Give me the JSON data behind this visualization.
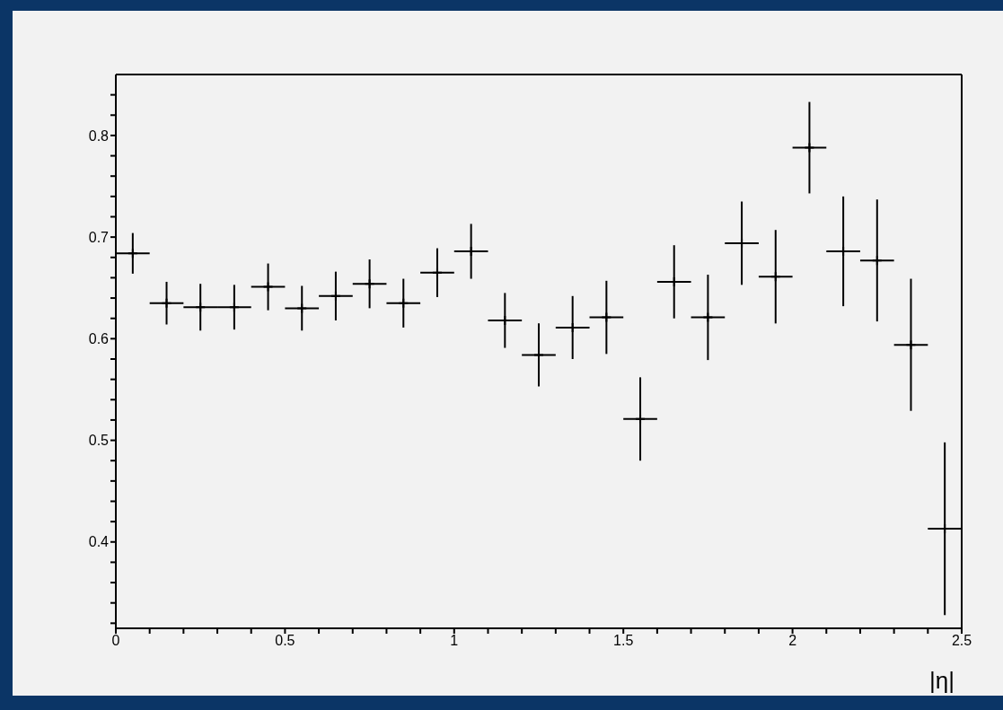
{
  "chart_data": {
    "type": "scatter",
    "xlabel": "|η|",
    "marker": "cross",
    "grid": false,
    "legend": false,
    "x": [
      0.05,
      0.15,
      0.25,
      0.35,
      0.45,
      0.55,
      0.65,
      0.75,
      0.85,
      0.95,
      1.05,
      1.15,
      1.25,
      1.35,
      1.45,
      1.55,
      1.65,
      1.75,
      1.85,
      1.95,
      2.05,
      2.15,
      2.25,
      2.35,
      2.45
    ],
    "series": [
      {
        "color": "#000000",
        "values": [
          0.684,
          0.635,
          0.631,
          0.631,
          0.651,
          0.63,
          0.642,
          0.654,
          0.635,
          0.665,
          0.686,
          0.618,
          0.584,
          0.611,
          0.621,
          0.521,
          0.656,
          0.621,
          0.694,
          0.661,
          0.788,
          0.686,
          0.677,
          0.594,
          0.413
        ],
        "errors": [
          0.02,
          0.021,
          0.023,
          0.022,
          0.023,
          0.022,
          0.024,
          0.024,
          0.024,
          0.024,
          0.027,
          0.027,
          0.031,
          0.031,
          0.036,
          0.041,
          0.036,
          0.042,
          0.041,
          0.046,
          0.045,
          0.054,
          0.06,
          0.065,
          0.085
        ],
        "xerrors": [
          0.05,
          0.05,
          0.05,
          0.05,
          0.05,
          0.05,
          0.05,
          0.05,
          0.05,
          0.05,
          0.05,
          0.05,
          0.05,
          0.05,
          0.05,
          0.05,
          0.05,
          0.05,
          0.05,
          0.05,
          0.05,
          0.05,
          0.05,
          0.05,
          0.05
        ]
      }
    ],
    "xlim": [
      0,
      2.5
    ],
    "ylim": [
      0.315,
      0.86
    ],
    "xticks": [
      0,
      {
        "value": 0.1,
        "label": null
      },
      {
        "value": 0.2,
        "label": null
      },
      {
        "value": 0.3,
        "label": null
      },
      {
        "value": 0.4,
        "label": null
      },
      0.5,
      {
        "value": 0.6,
        "label": null
      },
      {
        "value": 0.7,
        "label": null
      },
      {
        "value": 0.8,
        "label": null
      },
      {
        "value": 0.9,
        "label": null
      },
      1,
      {
        "value": 1.1,
        "label": null
      },
      {
        "value": 1.2,
        "label": null
      },
      {
        "value": 1.3,
        "label": null
      },
      {
        "value": 1.4,
        "label": null
      },
      1.5,
      {
        "value": 1.6,
        "label": null
      },
      {
        "value": 1.7,
        "label": null
      },
      {
        "value": 1.8,
        "label": null
      },
      {
        "value": 1.9,
        "label": null
      },
      2,
      {
        "value": 2.1,
        "label": null
      },
      {
        "value": 2.2,
        "label": null
      },
      {
        "value": 2.3,
        "label": null
      },
      {
        "value": 2.4,
        "label": null
      },
      2.5
    ],
    "yticks": [
      {
        "value": 0.32,
        "label": null
      },
      {
        "value": 0.34,
        "label": null
      },
      {
        "value": 0.36,
        "label": null
      },
      {
        "value": 0.38,
        "label": null
      },
      0.4,
      {
        "value": 0.42,
        "label": null
      },
      {
        "value": 0.44,
        "label": null
      },
      {
        "value": 0.46,
        "label": null
      },
      {
        "value": 0.48,
        "label": null
      },
      0.5,
      {
        "value": 0.52,
        "label": null
      },
      {
        "value": 0.54,
        "label": null
      },
      {
        "value": 0.56,
        "label": null
      },
      {
        "value": 0.58,
        "label": null
      },
      0.6,
      {
        "value": 0.62,
        "label": null
      },
      {
        "value": 0.64,
        "label": null
      },
      {
        "value": 0.66,
        "label": null
      },
      {
        "value": 0.68,
        "label": null
      },
      0.7,
      {
        "value": 0.72,
        "label": null
      },
      {
        "value": 0.74,
        "label": null
      },
      {
        "value": 0.76,
        "label": null
      },
      {
        "value": 0.78,
        "label": null
      },
      0.8,
      {
        "value": 0.82,
        "label": null
      },
      {
        "value": 0.84,
        "label": null
      }
    ]
  }
}
